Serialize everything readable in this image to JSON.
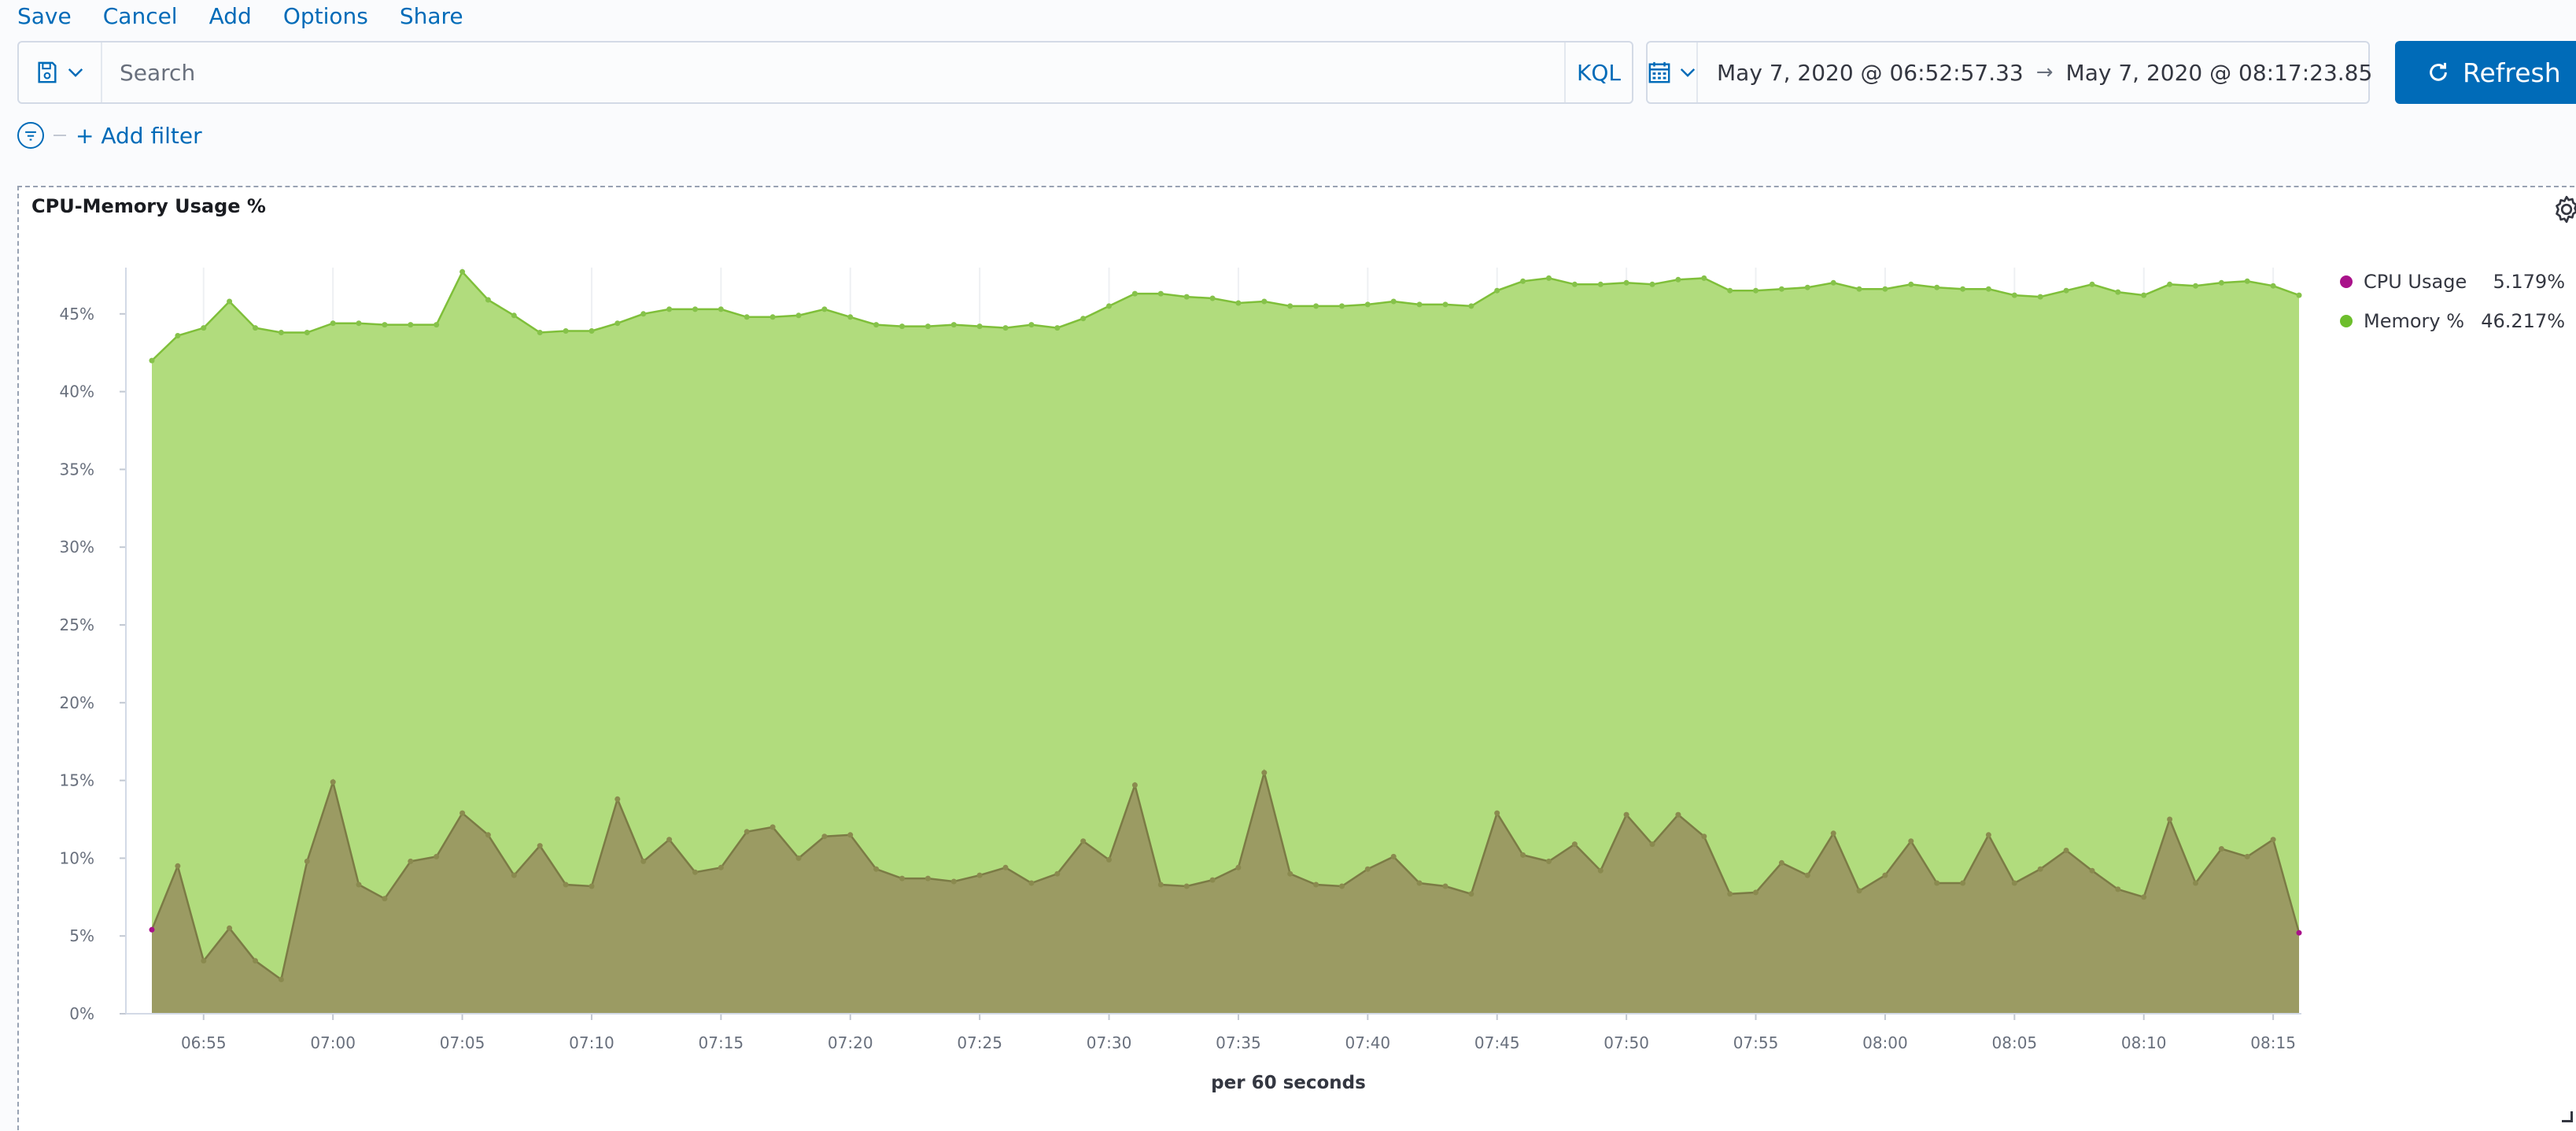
{
  "topnav": {
    "items": [
      "Save",
      "Cancel",
      "Add",
      "Options",
      "Share"
    ]
  },
  "query": {
    "placeholder": "Search",
    "language": "KQL"
  },
  "time": {
    "start": "May 7, 2020 @ 06:52:57.33",
    "arrow": "→",
    "end": "May 7, 2020 @ 08:17:23.85"
  },
  "refresh": {
    "label": "Refresh"
  },
  "filter": {
    "add_label": "+ Add filter"
  },
  "panel": {
    "title": "CPU-Memory Usage %"
  },
  "colors": {
    "accent": "#006bb8",
    "cpu": "#a9128a",
    "cpu_fill": "#9b9b63",
    "memory": "#6dbe2c",
    "memory_fill": "#b1dc7d"
  },
  "legend": [
    {
      "name": "CPU Usage",
      "value": "5.179%",
      "color": "#a9128a"
    },
    {
      "name": "Memory %",
      "value": "46.217%",
      "color": "#6dbe2c"
    }
  ],
  "chart_data": {
    "type": "area",
    "title": "CPU-Memory Usage %",
    "xlabel": "per 60 seconds",
    "ylabel": "",
    "ylim": [
      0,
      48
    ],
    "x_ticks": [
      "06:55",
      "07:00",
      "07:05",
      "07:10",
      "07:15",
      "07:20",
      "07:25",
      "07:30",
      "07:35",
      "07:40",
      "07:45",
      "07:50",
      "07:55",
      "08:00",
      "08:05",
      "08:10",
      "08:15"
    ],
    "y_ticks": [
      "0%",
      "5%",
      "10%",
      "15%",
      "20%",
      "25%",
      "30%",
      "35%",
      "40%",
      "45%"
    ],
    "x": [
      "06:53",
      "06:54",
      "06:55",
      "06:56",
      "06:57",
      "06:58",
      "06:59",
      "07:00",
      "07:01",
      "07:02",
      "07:03",
      "07:04",
      "07:05",
      "07:06",
      "07:07",
      "07:08",
      "07:09",
      "07:10",
      "07:11",
      "07:12",
      "07:13",
      "07:14",
      "07:15",
      "07:16",
      "07:17",
      "07:18",
      "07:19",
      "07:20",
      "07:21",
      "07:22",
      "07:23",
      "07:24",
      "07:25",
      "07:26",
      "07:27",
      "07:28",
      "07:29",
      "07:30",
      "07:31",
      "07:32",
      "07:33",
      "07:34",
      "07:35",
      "07:36",
      "07:37",
      "07:38",
      "07:39",
      "07:40",
      "07:41",
      "07:42",
      "07:43",
      "07:44",
      "07:45",
      "07:46",
      "07:47",
      "07:48",
      "07:49",
      "07:50",
      "07:51",
      "07:52",
      "07:53",
      "07:54",
      "07:55",
      "07:56",
      "07:57",
      "07:58",
      "07:59",
      "08:00",
      "08:01",
      "08:02",
      "08:03",
      "08:04",
      "08:05",
      "08:06",
      "08:07",
      "08:08",
      "08:09",
      "08:10",
      "08:11",
      "08:12",
      "08:13",
      "08:14",
      "08:15",
      "08:16"
    ],
    "grid": "vertical",
    "legend_position": "right",
    "series": [
      {
        "name": "Memory %",
        "values": [
          42.0,
          43.6,
          44.1,
          45.8,
          44.1,
          43.8,
          43.8,
          44.4,
          44.4,
          44.3,
          44.3,
          44.3,
          47.7,
          45.9,
          44.9,
          43.8,
          43.9,
          43.9,
          44.4,
          45.0,
          45.3,
          45.3,
          45.3,
          44.8,
          44.8,
          44.9,
          45.3,
          44.8,
          44.3,
          44.2,
          44.2,
          44.3,
          44.2,
          44.1,
          44.3,
          44.1,
          44.7,
          45.5,
          46.3,
          46.3,
          46.1,
          46.0,
          45.7,
          45.8,
          45.5,
          45.5,
          45.5,
          45.6,
          45.8,
          45.6,
          45.6,
          45.5,
          46.5,
          47.1,
          47.3,
          46.9,
          46.9,
          47.0,
          46.9,
          47.2,
          47.3,
          46.5,
          46.5,
          46.6,
          46.7,
          47.0,
          46.6,
          46.6,
          46.9,
          46.7,
          46.6,
          46.6,
          46.2,
          46.1,
          46.5,
          46.9,
          46.4,
          46.2,
          46.9,
          46.8,
          47.0,
          47.1,
          46.8,
          46.2
        ]
      },
      {
        "name": "CPU Usage",
        "values": [
          5.4,
          9.5,
          3.4,
          5.5,
          3.4,
          2.2,
          9.8,
          14.9,
          8.3,
          7.4,
          9.8,
          10.1,
          12.9,
          11.5,
          8.9,
          10.8,
          8.3,
          8.2,
          13.8,
          9.8,
          11.2,
          9.1,
          9.4,
          11.7,
          12.0,
          10.0,
          11.4,
          11.5,
          9.3,
          8.7,
          8.7,
          8.5,
          8.9,
          9.4,
          8.4,
          9.0,
          11.1,
          9.9,
          14.7,
          8.3,
          8.2,
          8.6,
          9.4,
          15.5,
          9.0,
          8.3,
          8.2,
          9.3,
          10.1,
          8.4,
          8.2,
          7.7,
          12.9,
          10.2,
          9.8,
          10.9,
          9.2,
          12.8,
          10.9,
          12.8,
          11.4,
          7.7,
          7.8,
          9.7,
          8.9,
          11.6,
          7.9,
          8.9,
          11.1,
          8.4,
          8.4,
          11.5,
          8.4,
          9.3,
          10.5,
          9.2,
          8.0,
          7.5,
          12.5,
          8.4,
          10.6,
          10.1,
          11.2,
          5.2
        ]
      }
    ]
  }
}
